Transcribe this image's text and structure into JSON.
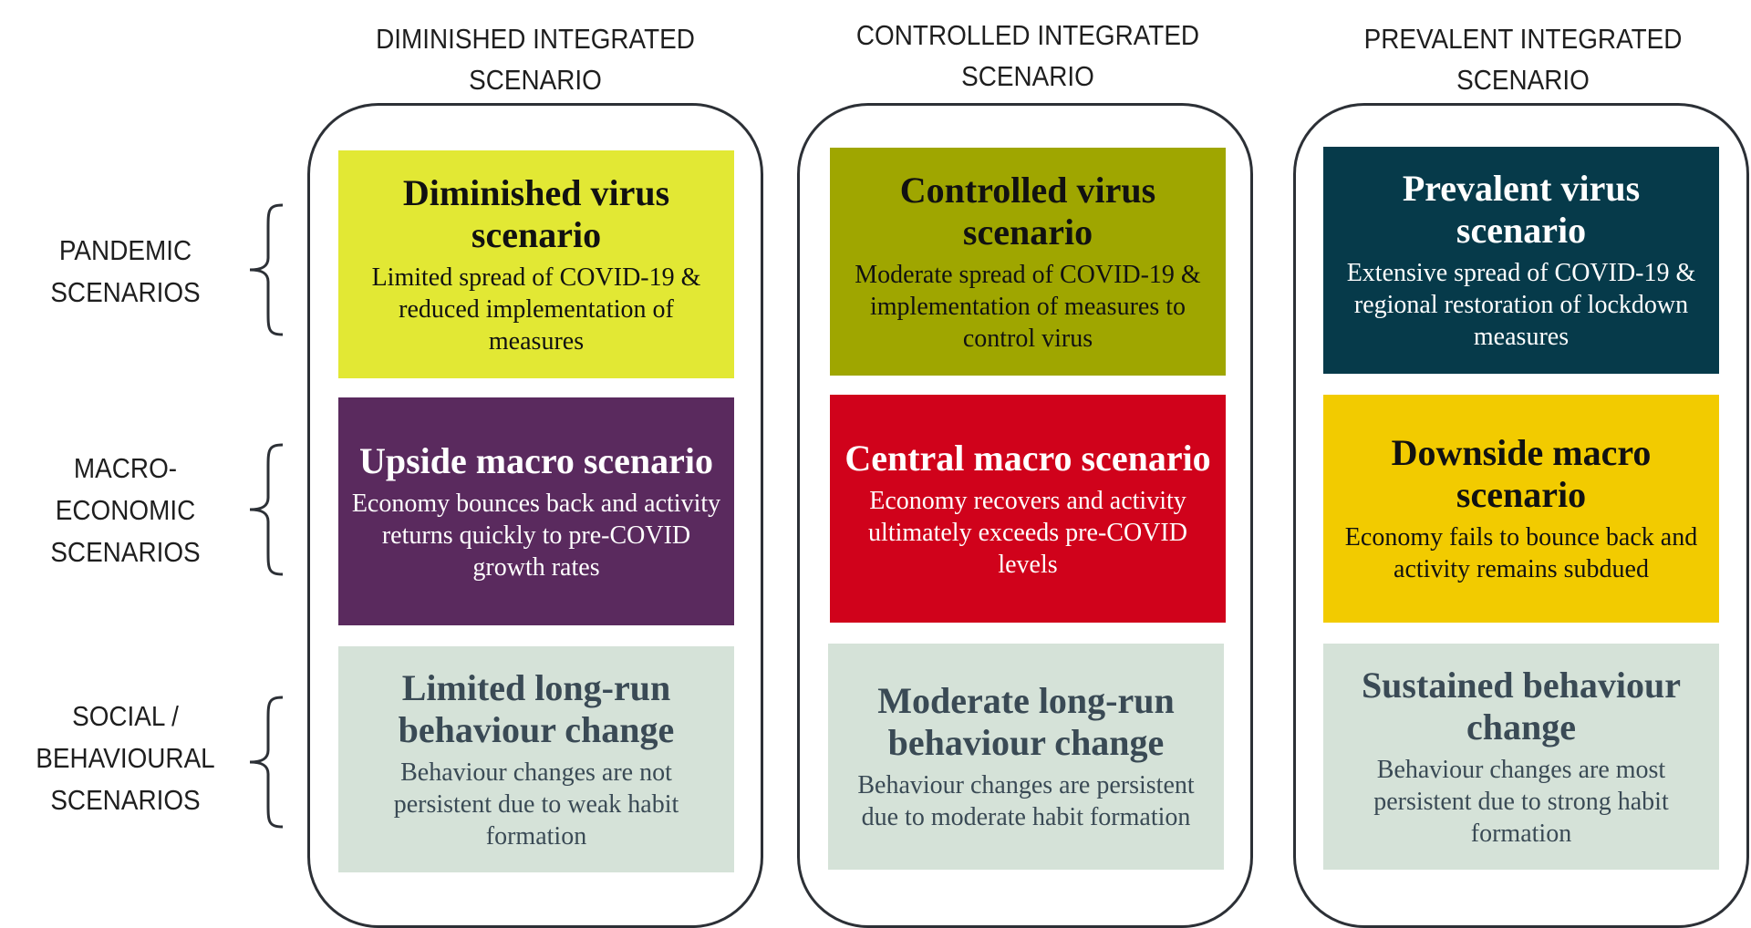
{
  "columns": [
    {
      "header": [
        "DIMINISHED INTEGRATED",
        "SCENARIO"
      ],
      "boxes": [
        {
          "title": "Diminished virus scenario",
          "desc": "Limited spread of COVID-19 & reduced implementation of measures",
          "bg": "#e2e834",
          "fg": "#111111"
        },
        {
          "title": "Upside macro scenario",
          "desc": "Economy bounces back and activity returns quickly to pre-COVID growth rates",
          "bg": "#5a2a5e",
          "fg": "#ffffff"
        },
        {
          "title": "Limited long-run behaviour change",
          "desc": "Behaviour changes are not persistent due to weak habit formation",
          "bg": "#d5e2d8",
          "fg": "#3a4a55"
        }
      ]
    },
    {
      "header": [
        "CONTROLLED INTEGRATED",
        "SCENARIO"
      ],
      "boxes": [
        {
          "title": "Controlled virus scenario",
          "desc": "Moderate spread of COVID-19 & implementation of measures to control virus",
          "bg": "#9fa600",
          "fg": "#111111"
        },
        {
          "title": "Central macro scenario",
          "desc": "Economy recovers and activity ultimately exceeds pre-COVID levels",
          "bg": "#d0021b",
          "fg": "#ffffff"
        },
        {
          "title": "Moderate long-run behaviour change",
          "desc": "Behaviour changes are persistent due to moderate habit formation",
          "bg": "#d5e2d8",
          "fg": "#3a4a55"
        }
      ]
    },
    {
      "header": [
        "PREVALENT INTEGRATED",
        "SCENARIO"
      ],
      "boxes": [
        {
          "title": "Prevalent virus scenario",
          "desc": "Extensive spread of COVID-19 & regional restoration of lockdown measures",
          "bg": "#063a4a",
          "fg": "#ffffff"
        },
        {
          "title": "Downside macro scenario",
          "desc": "Economy fails to bounce back and activity remains subdued",
          "bg": "#f2cb00",
          "fg": "#111111"
        },
        {
          "title": "Sustained behaviour change",
          "desc": "Behaviour changes are most persistent due to strong habit formation",
          "bg": "#d5e2d8",
          "fg": "#3a4a55"
        }
      ]
    }
  ],
  "rows": [
    {
      "label": [
        "PANDEMIC",
        "SCENARIOS"
      ]
    },
    {
      "label": [
        "MACRO-",
        "ECONOMIC",
        "SCENARIOS"
      ]
    },
    {
      "label": [
        "SOCIAL /",
        "BEHAVIOURAL",
        "SCENARIOS"
      ]
    }
  ]
}
